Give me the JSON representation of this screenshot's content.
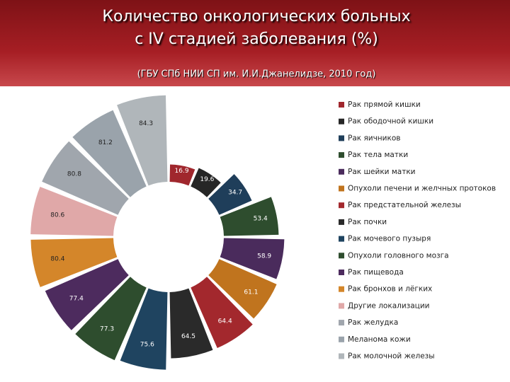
{
  "chart_data": {
    "type": "polar",
    "title": [
      "Количество онкологических больных",
      "с IV стадией заболевания (%)"
    ],
    "subtitle": "(ГБУ СПб НИИ СП им. И.И.Джанелидзе, 2010 год)",
    "categories": [
      "Рак прямой кишки",
      "Рак ободочной кишки",
      "Рак яичников",
      "Рак тела  матки",
      "Рак шейки матки",
      "Опухоли печени и желчных протоков",
      "Рак предстательной железы",
      "Рак почки",
      "Рак мочевого пузыря",
      "Опухоли головного мозга",
      "Рак пищевода",
      "Рак бронхов и лёгких",
      "Другие локализации",
      "Рак желудка",
      "Меланома кожи",
      "Рак молочной железы"
    ],
    "values": [
      16.9,
      19.6,
      34.7,
      53.4,
      58.9,
      61.1,
      64.4,
      64.5,
      75.6,
      77.3,
      77.4,
      80.4,
      80.6,
      80.8,
      81.2,
      84.3
    ],
    "colors": [
      "#a0272d",
      "#262626",
      "#1f3e5a",
      "#2e4d2e",
      "#4a2b5c",
      "#c0741e",
      "#a3282d",
      "#2a2a2a",
      "#1f4460",
      "#2e4d2e",
      "#4d2b5e",
      "#d4862a",
      "#e0a8a8",
      "#a0a6ad",
      "#9aa3ab",
      "#b0b6ba"
    ]
  }
}
